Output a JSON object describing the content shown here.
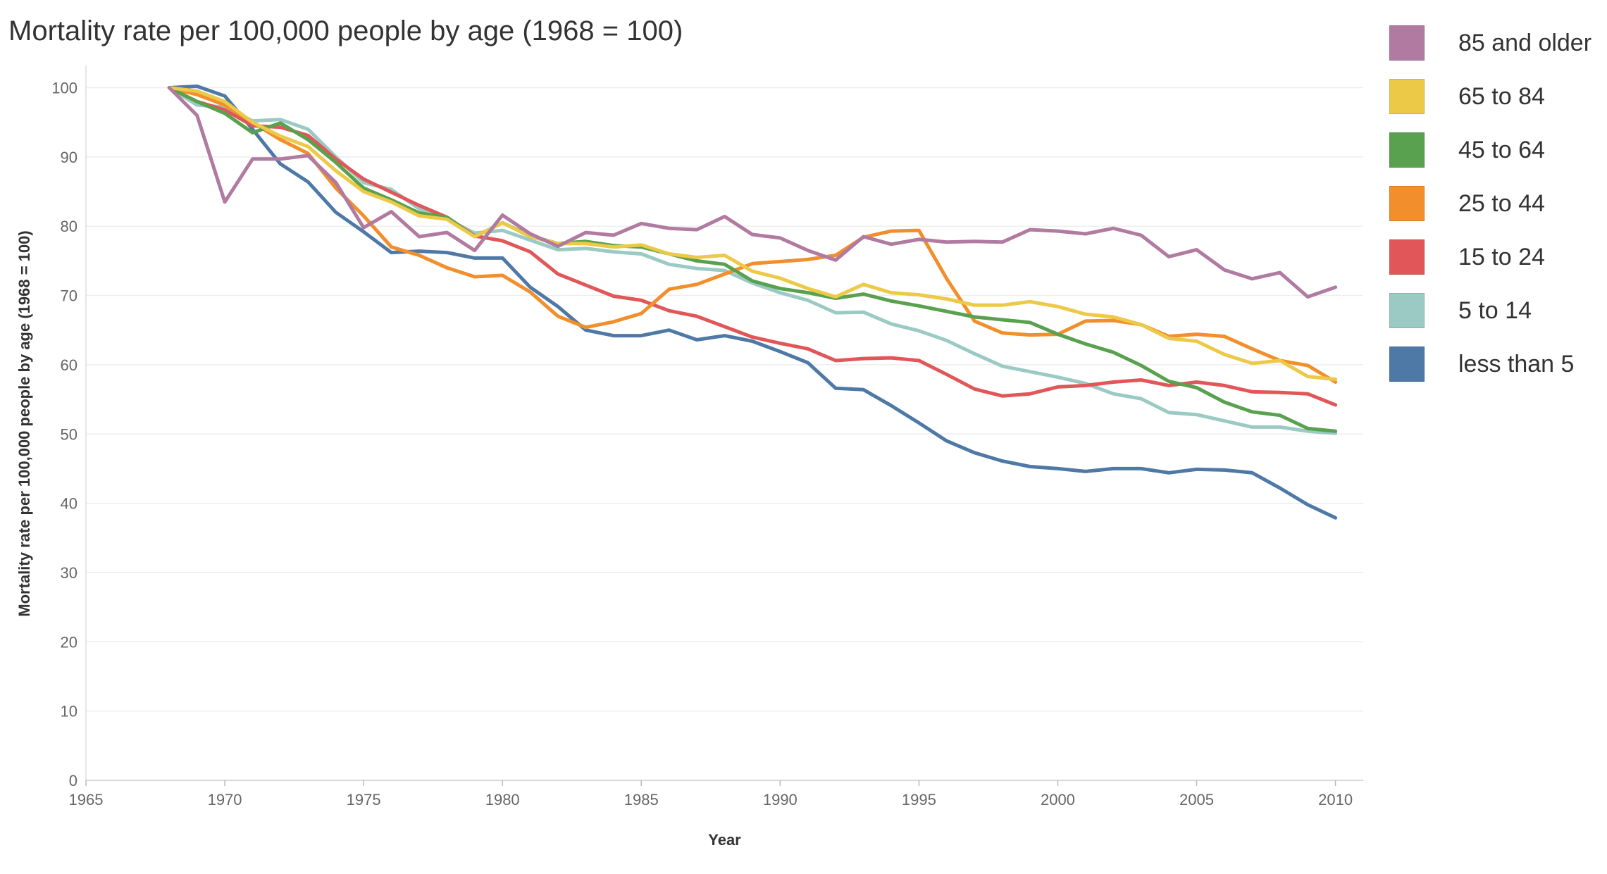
{
  "title": "Mortality rate per 100,000 people by age (1968 = 100)",
  "chart_data": {
    "type": "line",
    "title": "Mortality rate per 100,000 people by age (1968 = 100)",
    "xlabel": "Year",
    "ylabel": "Mortality rate per 100,000 people by age (1968 = 100)",
    "xlim": [
      1965,
      2011
    ],
    "ylim": [
      0,
      103
    ],
    "x_ticks": [
      1965,
      1970,
      1975,
      1980,
      1985,
      1990,
      1995,
      2000,
      2005,
      2010
    ],
    "y_ticks": [
      0,
      10,
      20,
      30,
      40,
      50,
      60,
      70,
      80,
      90,
      100
    ],
    "grid": "horizontal",
    "legend_position": "right",
    "x": [
      1968,
      1969,
      1970,
      1971,
      1972,
      1973,
      1974,
      1975,
      1976,
      1977,
      1978,
      1979,
      1980,
      1981,
      1982,
      1983,
      1984,
      1985,
      1986,
      1987,
      1988,
      1989,
      1990,
      1991,
      1992,
      1993,
      1994,
      1995,
      1996,
      1997,
      1998,
      1999,
      2000,
      2001,
      2002,
      2003,
      2004,
      2005,
      2006,
      2007,
      2008,
      2009,
      2010
    ],
    "series": [
      {
        "name": "85 and older",
        "color": "#b07aa1",
        "values": [
          100,
          96,
          83.5,
          89.7,
          89.7,
          90.2,
          86.3,
          79.8,
          82.1,
          78.5,
          79.1,
          76.5,
          81.6,
          78.9,
          77.1,
          79.1,
          78.7,
          80.4,
          79.7,
          79.5,
          81.4,
          78.8,
          78.3,
          76.5,
          75.1,
          78.5,
          77.4,
          78.1,
          77.7,
          77.8,
          77.7,
          79.5,
          79.3,
          78.9,
          79.7,
          78.7,
          75.6,
          76.6,
          73.7,
          72.4,
          73.3,
          69.8,
          71.2
        ]
      },
      {
        "name": "65 to 84",
        "color": "#edc948",
        "values": [
          100,
          99.5,
          98,
          95,
          93,
          91.5,
          88,
          85,
          83.5,
          81.5,
          81,
          78.5,
          80.5,
          78.5,
          77.5,
          77.5,
          77,
          77.3,
          76,
          75.5,
          75.8,
          73.5,
          72.5,
          71,
          69.8,
          71.6,
          70.4,
          70.1,
          69.5,
          68.6,
          68.6,
          69.1,
          68.4,
          67.3,
          66.9,
          65.8,
          63.8,
          63.4,
          61.5,
          60.2,
          60.6,
          58.3,
          57.9
        ]
      },
      {
        "name": "45 to 64",
        "color": "#59a14f",
        "values": [
          100,
          98,
          96.3,
          93.5,
          94.9,
          92.5,
          89.2,
          85.5,
          83.8,
          81.9,
          81.3,
          78.5,
          80.5,
          78.6,
          77.5,
          77.8,
          77.2,
          77,
          76,
          75,
          74.5,
          72.1,
          71,
          70.4,
          69.6,
          70.2,
          69.2,
          68.5,
          67.7,
          66.9,
          66.5,
          66.1,
          64.4,
          63,
          61.8,
          59.9,
          57.6,
          56.7,
          54.6,
          53.2,
          52.7,
          50.8,
          50.4
        ]
      },
      {
        "name": "25 to 44",
        "color": "#f28e2b",
        "values": [
          100,
          99,
          97.5,
          95,
          92.5,
          90.5,
          85.5,
          81.5,
          77,
          75.8,
          74,
          72.7,
          72.9,
          70.5,
          67,
          65.4,
          66.2,
          67.4,
          70.9,
          71.6,
          73.1,
          74.6,
          74.9,
          75.2,
          75.8,
          78.4,
          79.3,
          79.4,
          72.4,
          66.3,
          64.6,
          64.3,
          64.4,
          66.3,
          66.4,
          65.8,
          64.1,
          64.4,
          64.1,
          62.3,
          60.6,
          59.9,
          57.5
        ]
      },
      {
        "name": "15 to 24",
        "color": "#e15759",
        "values": [
          100,
          98,
          96.8,
          94.5,
          94.3,
          93.1,
          89.7,
          86.8,
          84.9,
          83,
          81.3,
          78.6,
          77.9,
          76.3,
          73.1,
          71.5,
          69.9,
          69.3,
          67.8,
          67,
          65.5,
          64,
          63.1,
          62.3,
          60.6,
          60.9,
          61,
          60.6,
          58.6,
          56.5,
          55.5,
          55.8,
          56.8,
          57,
          57.5,
          57.8,
          57,
          57.5,
          57,
          56.1,
          56,
          55.8,
          54.2
        ]
      },
      {
        "name": "5 to 14",
        "color": "#9bcac4",
        "values": [
          100,
          97.5,
          97.2,
          95.2,
          95.4,
          94,
          90,
          86.3,
          85.3,
          82.5,
          81,
          79,
          79.4,
          78,
          76.6,
          76.8,
          76.3,
          76,
          74.5,
          73.9,
          73.6,
          71.8,
          70.4,
          69.3,
          67.5,
          67.6,
          65.9,
          64.9,
          63.5,
          61.6,
          59.8,
          59,
          58.2,
          57.3,
          55.8,
          55.1,
          53.1,
          52.8,
          51.9,
          51,
          51,
          50.4,
          50.1
        ]
      },
      {
        "name": "less than 5",
        "color": "#4e79a7",
        "values": [
          100,
          100.2,
          98.8,
          94,
          89,
          86.4,
          82,
          79.2,
          76.2,
          76.4,
          76.2,
          75.4,
          75.4,
          71.2,
          68.4,
          65,
          64.2,
          64.2,
          65,
          63.6,
          64.2,
          63.4,
          61.9,
          60.3,
          56.6,
          56.4,
          54.1,
          51.6,
          49,
          47.3,
          46.1,
          45.3,
          45,
          44.6,
          45,
          45,
          44.4,
          44.9,
          44.8,
          44.4,
          42.2,
          39.8,
          37.9
        ]
      }
    ]
  }
}
